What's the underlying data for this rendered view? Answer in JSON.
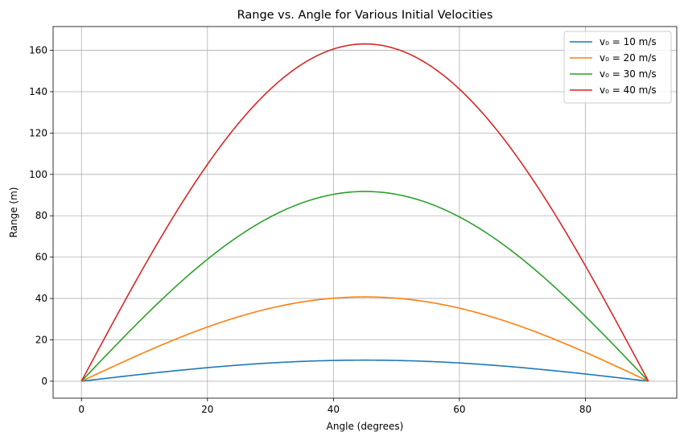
{
  "chart_data": {
    "type": "line",
    "title": "Range vs. Angle for Various Initial Velocities",
    "xlabel": "Angle (degrees)",
    "ylabel": "Range (m)",
    "xlim": [
      -4.5,
      94.5
    ],
    "ylim": [
      -8.2,
      171.5
    ],
    "xticks": [
      0,
      20,
      40,
      60,
      80
    ],
    "yticks": [
      0,
      20,
      40,
      60,
      80,
      100,
      120,
      140,
      160
    ],
    "grid": true,
    "legend_position": "top-right",
    "x": [
      0,
      5,
      10,
      15,
      20,
      25,
      30,
      35,
      40,
      45,
      50,
      55,
      60,
      65,
      70,
      75,
      80,
      85,
      90
    ],
    "series": [
      {
        "name": "v₀ = 10 m/s",
        "color": "#1f77b4",
        "values": [
          0,
          1.77,
          3.49,
          5.1,
          6.55,
          7.81,
          8.83,
          9.58,
          10.04,
          10.19,
          10.04,
          9.58,
          8.83,
          7.81,
          6.55,
          5.1,
          3.49,
          1.77,
          0
        ]
      },
      {
        "name": "v₀ = 20 m/s",
        "color": "#ff7f0e",
        "values": [
          0,
          7.08,
          13.94,
          20.39,
          26.21,
          31.23,
          35.31,
          38.31,
          40.15,
          40.77,
          40.15,
          38.31,
          35.31,
          31.23,
          26.21,
          20.39,
          13.94,
          7.08,
          0
        ]
      },
      {
        "name": "v₀ = 30 m/s",
        "color": "#2ca02c",
        "values": [
          0,
          15.93,
          31.37,
          45.87,
          58.97,
          70.28,
          79.45,
          86.2,
          90.33,
          91.74,
          90.33,
          86.2,
          79.45,
          70.28,
          58.97,
          45.87,
          31.37,
          15.93,
          0
        ]
      },
      {
        "name": "v₀ = 40 m/s",
        "color": "#d62728",
        "values": [
          0,
          28.33,
          55.77,
          81.55,
          104.83,
          124.94,
          141.24,
          153.24,
          160.59,
          163.1,
          160.59,
          153.24,
          141.24,
          124.94,
          104.83,
          81.55,
          55.77,
          28.33,
          0
        ]
      }
    ]
  }
}
